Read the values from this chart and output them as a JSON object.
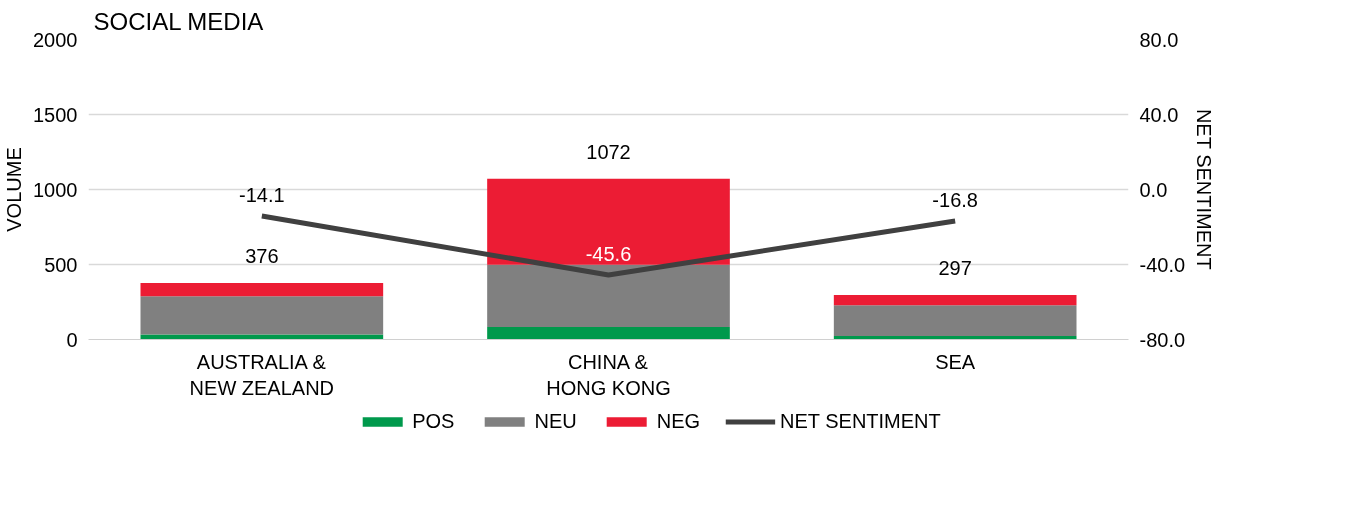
{
  "chart_data": {
    "type": "bar",
    "title": "SOCIAL MEDIA",
    "ylabel": "VOLUME",
    "y2label": "NET SENTIMENT",
    "categories": [
      "AUSTRALIA &\nNEW ZEALAND",
      "CHINA &\nHONG KONG",
      "SEA"
    ],
    "stacked": true,
    "series": [
      {
        "name": "POS",
        "color": "#00994c",
        "values": [
          33,
          84,
          23
        ]
      },
      {
        "name": "NEU",
        "color": "#808080",
        "values": [
          256,
          414,
          205
        ]
      },
      {
        "name": "NEG",
        "color": "#ec1c34",
        "values": [
          87,
          574,
          69
        ]
      },
      {
        "name": "NET SENTIMENT",
        "type": "line",
        "axis": "y2",
        "color": "#404040",
        "values": [
          -14.1,
          -45.6,
          -16.8
        ],
        "value_labels": [
          "-14.1",
          "-45.6",
          "-16.8"
        ]
      }
    ],
    "totals": [
      "376",
      "1072",
      "297"
    ],
    "ylim": [
      0,
      2000
    ],
    "yticks": [
      0,
      500,
      1000,
      1500,
      2000
    ],
    "y2lim": [
      -80,
      80
    ],
    "y2ticks": [
      {
        "value": -80,
        "label": "-80.0"
      },
      {
        "value": -40,
        "label": "-40.0"
      },
      {
        "value": 0,
        "label": "0.0"
      },
      {
        "value": 40,
        "label": "40.0"
      },
      {
        "value": 80,
        "label": "80.0"
      }
    ],
    "grid": "y",
    "legend": "bottom",
    "marker": "none",
    "line_style": "solid"
  }
}
